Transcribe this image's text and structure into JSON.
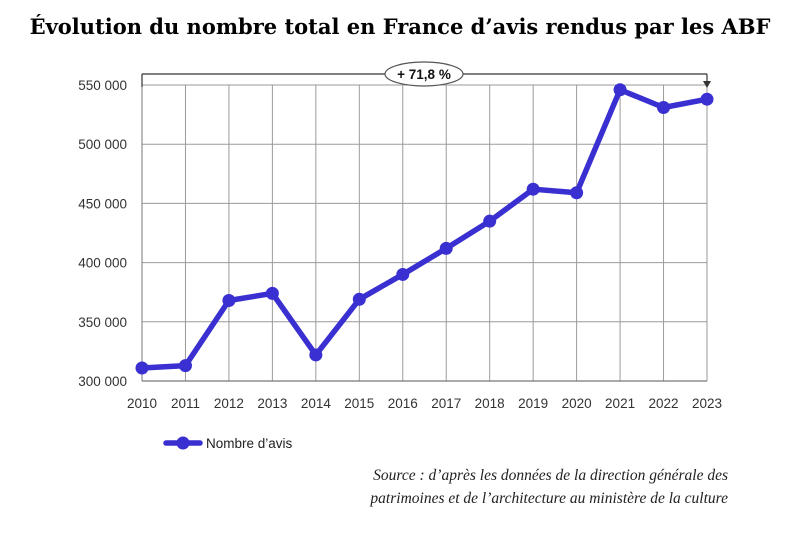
{
  "chart_data": {
    "type": "line",
    "title": "Évolution du nombre total en France d’avis rendus par les ABF",
    "xlabel": "",
    "ylabel": "",
    "categories": [
      "2010",
      "2011",
      "2012",
      "2013",
      "2014",
      "2015",
      "2016",
      "2017",
      "2018",
      "2019",
      "2020",
      "2021",
      "2022",
      "2023"
    ],
    "series": [
      {
        "name": "Nombre d’avis",
        "values": [
          311000,
          313000,
          368000,
          374000,
          322000,
          369000,
          390000,
          412000,
          435000,
          462000,
          459000,
          546000,
          531000,
          538000
        ]
      }
    ],
    "ylim": [
      300000,
      550000
    ],
    "yticks": [
      300000,
      350000,
      400000,
      450000,
      500000,
      550000
    ],
    "ytick_labels": [
      "300 000",
      "350 000",
      "400 000",
      "450 000",
      "500 000",
      "550 000"
    ],
    "annotation": "+ 71,8 %",
    "grid": true,
    "legend_position": "bottom-left",
    "colors": {
      "series": "#3a2fd0",
      "grid": "#9a9a9a",
      "axis": "#333333"
    }
  },
  "source": {
    "line1": "Source : d’après les données de la direction générale des",
    "line2": "patrimoines et de l’architecture au ministère de la culture"
  }
}
